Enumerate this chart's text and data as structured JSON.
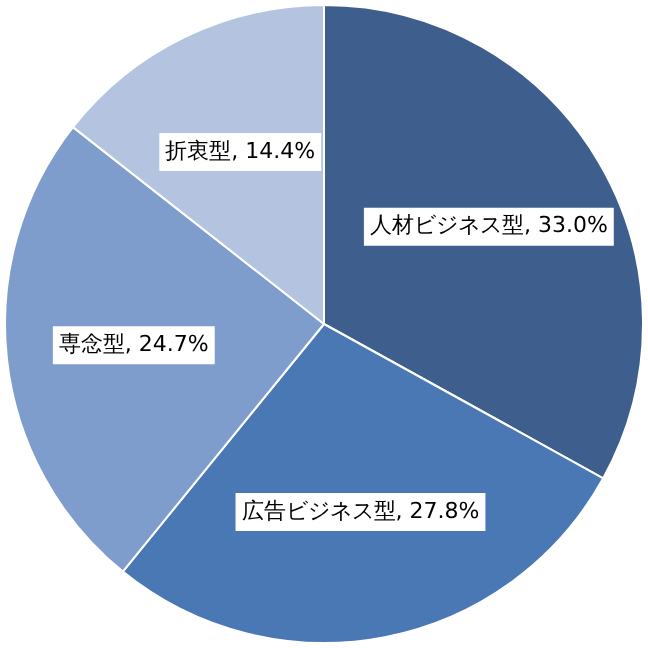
{
  "chart_data": {
    "type": "pie",
    "categories": [
      "人材ビジネス型",
      "広告ビジネス型",
      "専念型",
      "折衷型"
    ],
    "values": [
      33.0,
      27.8,
      24.7,
      14.4
    ],
    "value_labels": [
      "33.0%",
      "27.8%",
      "24.7%",
      "14.4%"
    ],
    "colors": [
      "#3e5f8e",
      "#4a78b4",
      "#7f9dcc",
      "#b4c4e0"
    ],
    "legend": false
  }
}
